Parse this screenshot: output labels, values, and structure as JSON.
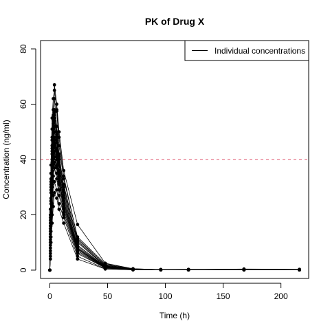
{
  "chart_data": {
    "type": "line",
    "title": "PK of Drug X",
    "xlabel": "Time (h)",
    "ylabel": "Concentration (ng/ml)",
    "xlim": [
      -8,
      224
    ],
    "ylim": [
      -3,
      83
    ],
    "x_ticks": [
      0,
      50,
      100,
      150,
      200
    ],
    "y_ticks": [
      0,
      20,
      40,
      60,
      80
    ],
    "grid": false,
    "legend": {
      "position": "top-right",
      "entries": [
        "Individual concentrations"
      ]
    },
    "reference_line": {
      "y": 40,
      "style": "dashed",
      "color": "#DF536B"
    },
    "x": [
      0,
      0.5,
      1,
      2,
      3,
      4,
      6,
      8,
      12,
      24,
      48,
      72,
      96,
      120,
      168,
      216
    ],
    "series": [
      {
        "values": [
          0,
          12,
          25,
          40,
          50,
          55,
          47,
          38,
          28,
          10,
          1.5,
          0.3,
          0.1,
          0.1,
          0.1,
          0.1
        ]
      },
      {
        "values": [
          0,
          15,
          30,
          45,
          58,
          62,
          52,
          42,
          30,
          11,
          2,
          0.4,
          0.2,
          0.1,
          0.3,
          0.2
        ]
      },
      {
        "values": [
          0,
          10,
          22,
          36,
          46,
          67,
          60,
          50,
          36,
          16.5,
          2.5,
          0.5,
          0.2,
          0.2,
          0.4,
          0.3
        ]
      },
      {
        "values": [
          0,
          8,
          18,
          30,
          40,
          45,
          40,
          32,
          24,
          8,
          1,
          0.2,
          0.1,
          0.1,
          0.1,
          0.1
        ]
      },
      {
        "values": [
          0,
          20,
          35,
          51,
          56,
          58,
          57.5,
          45,
          33,
          12,
          2.3,
          0.5,
          0.2,
          0.3,
          0.3,
          0.2
        ]
      },
      {
        "values": [
          0,
          6,
          14,
          24,
          32,
          37,
          33,
          27,
          20,
          6,
          0.8,
          0.2,
          0.1,
          0.1,
          0.1,
          0.1
        ]
      },
      {
        "values": [
          0,
          14,
          28,
          42,
          48,
          52,
          46,
          38,
          26,
          9,
          1.2,
          0.3,
          0.1,
          0.1,
          0.2,
          0.1
        ]
      },
      {
        "values": [
          0,
          18,
          32,
          47,
          53,
          56,
          49,
          40,
          29,
          10,
          1.4,
          0.3,
          0.1,
          0.1,
          0.2,
          0.1
        ]
      },
      {
        "values": [
          0,
          5,
          12,
          20,
          27,
          32,
          29,
          24,
          19,
          5,
          0.5,
          0.1,
          0.1,
          0.1,
          0.1,
          0.1
        ]
      },
      {
        "values": [
          0,
          11,
          24,
          38,
          44,
          48,
          43,
          35,
          25,
          8,
          1,
          0.2,
          0.1,
          0.1,
          0.1,
          0.1
        ]
      },
      {
        "values": [
          0,
          16,
          29,
          43,
          51,
          54,
          48,
          39,
          27,
          9,
          1.3,
          0.3,
          0.1,
          0.1,
          0.2,
          0.1
        ]
      },
      {
        "values": [
          0,
          9,
          19,
          31,
          38,
          41,
          37,
          31,
          22,
          7,
          0.9,
          0.2,
          0.1,
          0.1,
          0.1,
          0.1
        ]
      },
      {
        "values": [
          0,
          22,
          38,
          55,
          62,
          65,
          58,
          48,
          34,
          11.5,
          1.8,
          0.4,
          0.2,
          0.2,
          0.3,
          0.2
        ]
      },
      {
        "values": [
          0,
          7,
          16,
          27,
          34,
          39,
          35,
          29,
          21,
          6.5,
          0.7,
          0.2,
          0.1,
          0.1,
          0.1,
          0.1
        ]
      },
      {
        "values": [
          0,
          13,
          26,
          39,
          45,
          47,
          42,
          34,
          23,
          7.5,
          0.9,
          0.2,
          0.1,
          0.1,
          0.1,
          0.1
        ]
      },
      {
        "values": [
          0,
          17,
          31,
          44,
          47,
          50,
          44,
          36,
          25,
          8.5,
          1.1,
          0.3,
          0.1,
          0.1,
          0.2,
          0.1
        ]
      },
      {
        "values": [
          0,
          4,
          10,
          17,
          23,
          28,
          26,
          22,
          17,
          4,
          0.4,
          0.1,
          0.1,
          0.1,
          0.1,
          0.1
        ]
      },
      {
        "values": [
          0,
          19,
          33,
          48,
          54,
          57,
          50,
          41,
          31,
          10.5,
          1.6,
          0.3,
          0.1,
          0.1,
          0.2,
          0.1
        ]
      },
      {
        "values": [
          0,
          10,
          21,
          33,
          40,
          43,
          38,
          32,
          23,
          7,
          0.8,
          0.2,
          0.1,
          0.1,
          0.1,
          0.1
        ]
      },
      {
        "values": [
          0,
          12,
          25,
          37,
          42,
          46,
          41,
          33,
          24,
          7.8,
          1,
          0.2,
          0.1,
          0.1,
          0.1,
          0.1
        ]
      }
    ]
  }
}
